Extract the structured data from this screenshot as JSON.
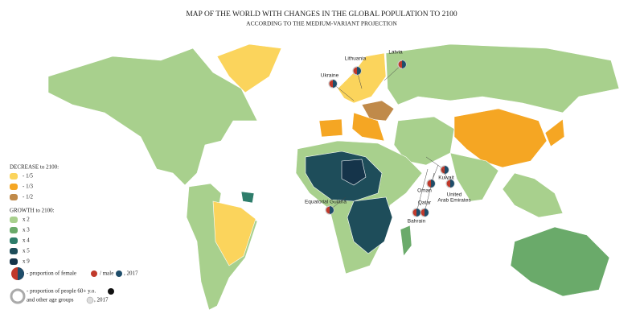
{
  "header": {
    "title": "MAP OF THE WORLD WITH CHANGES IN THE GLOBAL POPULATION TO 2100",
    "subtitle": "ACCORDING TO THE MEDIUM-VARIANT PROJECTION"
  },
  "legend": {
    "decrease_title": "DECREASE to 2100:",
    "decrease": [
      {
        "label": "- 1/5",
        "color": "#fbd45c"
      },
      {
        "label": "- 1/3",
        "color": "#f5a623"
      },
      {
        "label": "- 1/2",
        "color": "#c08a4a"
      }
    ],
    "growth_title": "GROWTH to 2100:",
    "growth": [
      {
        "label": "x 2",
        "color": "#a8d08d"
      },
      {
        "label": "x 3",
        "color": "#6aaa6a"
      },
      {
        "label": "x 4",
        "color": "#2e7d6b"
      },
      {
        "label": "x 5",
        "color": "#1e4d5a"
      },
      {
        "label": "x 9",
        "color": "#15344a"
      }
    ],
    "gender": {
      "text": "- proportion of  female",
      "male": "/ male",
      "year": ", 2017"
    },
    "age": {
      "text": "- proportion of people 60+ y.o.",
      "others": "and other age groups",
      "year": ", 2017"
    }
  },
  "callouts": [
    "Latvia",
    "Lithuania",
    "Ukraine",
    "Kuwait",
    "Oman",
    "Qatar",
    "Bahrain",
    "United",
    "Arab Emirates",
    "Equatorial Guiana"
  ]
}
